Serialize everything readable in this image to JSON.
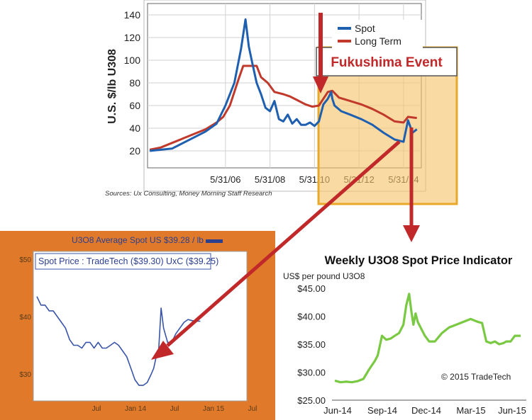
{
  "colors": {
    "spot": "#1f5fb0",
    "long_term": "#c0392b",
    "arrow": "#c0282a",
    "highlight_fill": "#f6c46a",
    "highlight_border": "#e8a92a",
    "panel_orange": "#e07a2a",
    "inset_line": "#3a55a8",
    "tradetech_line": "#7ac943",
    "fukushima_text": "#c0282a"
  },
  "annotations": {
    "fukushima": "Fukushima Event",
    "sources": "Sources: Ux Consulting, Money Morning Staff Research"
  },
  "chart_data": [
    {
      "id": "historical",
      "type": "line",
      "title": "",
      "xlabel": "",
      "ylabel": "U.S. $/lb U308",
      "x_tick_labels": [
        "5/31/06",
        "5/31/08",
        "5/31/10",
        "5/31/12",
        "5/31/14"
      ],
      "y_ticks": [
        20,
        40,
        60,
        80,
        100,
        120,
        140
      ],
      "xlim": [
        2002.9,
        2015.2
      ],
      "ylim": [
        5,
        150
      ],
      "legend_position": "top-right",
      "grid": true,
      "series": [
        {
          "name": "Spot",
          "color": "#1f5fb0",
          "x": [
            2003.0,
            2003.5,
            2004.0,
            2004.5,
            2005.0,
            2005.5,
            2006.0,
            2006.4,
            2006.8,
            2007.1,
            2007.3,
            2007.45,
            2007.6,
            2007.8,
            2008.0,
            2008.2,
            2008.4,
            2008.6,
            2008.8,
            2009.0,
            2009.2,
            2009.4,
            2009.6,
            2009.8,
            2010.0,
            2010.2,
            2010.4,
            2010.6,
            2010.8,
            2011.0,
            2011.15,
            2011.2,
            2011.3,
            2011.6,
            2012.0,
            2012.5,
            2013.0,
            2013.5,
            2014.0,
            2014.4,
            2014.6,
            2014.8,
            2015.0
          ],
          "values": [
            20,
            21,
            22,
            27,
            32,
            37,
            44,
            60,
            80,
            110,
            136,
            112,
            98,
            80,
            70,
            58,
            55,
            64,
            48,
            46,
            52,
            44,
            48,
            43,
            43,
            45,
            42,
            46,
            61,
            66,
            72,
            66,
            60,
            55,
            52,
            48,
            43,
            36,
            30,
            28,
            47,
            36,
            39
          ]
        },
        {
          "name": "Long Term",
          "color": "#c0392b",
          "x": [
            2003.0,
            2003.5,
            2004.0,
            2004.5,
            2005.0,
            2005.5,
            2006.0,
            2006.3,
            2006.6,
            2006.8,
            2007.0,
            2007.2,
            2007.4,
            2007.6,
            2007.8,
            2008.0,
            2008.3,
            2008.6,
            2009.0,
            2009.3,
            2009.6,
            2010.0,
            2010.3,
            2010.6,
            2010.8,
            2011.0,
            2011.2,
            2011.5,
            2012.0,
            2012.5,
            2013.0,
            2013.5,
            2014.0,
            2014.4,
            2014.6,
            2015.0
          ],
          "values": [
            21,
            23,
            27,
            31,
            35,
            39,
            45,
            50,
            60,
            72,
            84,
            95,
            95,
            95,
            95,
            85,
            80,
            72,
            70,
            68,
            65,
            61,
            59,
            60,
            66,
            72,
            73,
            67,
            64,
            61,
            57,
            52,
            46,
            45,
            50,
            49
          ]
        }
      ]
    },
    {
      "id": "inset",
      "type": "line",
      "title": "U3O8 Average Spot US $39.28 / lb",
      "subtitle": "Spot Price : TradeTech ($39.30) UxC ($39.25)",
      "xlabel": "",
      "ylabel": "",
      "x_tick_labels": [
        "Jul",
        "Jan 14",
        "Jul",
        "Jan 15",
        "Jul"
      ],
      "y_tick_labels": [
        "$30",
        "$40",
        "$50"
      ],
      "y_ticks": [
        30,
        40,
        50
      ],
      "xlim": [
        0,
        25
      ],
      "ylim": [
        25.3,
        51
      ],
      "grid": false,
      "series": [
        {
          "name": "Spot Price",
          "color": "#3a55a8",
          "x": [
            0,
            0.5,
            1,
            1.5,
            2,
            2.5,
            3,
            3.5,
            4,
            4.5,
            5,
            5.5,
            6,
            6.5,
            7,
            7.5,
            8,
            8.5,
            9,
            9.5,
            10,
            10.5,
            11,
            11.5,
            12,
            12.5,
            13,
            13.5,
            14,
            14.3,
            14.6,
            14.9,
            15.2,
            15.5,
            16,
            16.5,
            17,
            17.5,
            18,
            18.5,
            19,
            19.5,
            20
          ],
          "values": [
            43.5,
            42,
            42,
            41,
            41,
            40,
            39,
            38,
            36,
            35,
            35,
            34.5,
            35.5,
            35.5,
            34.5,
            35.5,
            34.5,
            34.5,
            35,
            35.5,
            35,
            34,
            33,
            31,
            29,
            28,
            28,
            28.5,
            30,
            31,
            33,
            34,
            41.5,
            38,
            35.5,
            35.5,
            37,
            38,
            39,
            39.5,
            39.3,
            39.2,
            39.2
          ]
        }
      ]
    },
    {
      "id": "tradetech",
      "type": "line",
      "title": "Weekly U3O8 Spot Price Indicator",
      "ylabel": "US$ per pound U3O8",
      "xlabel": "",
      "x_tick_labels": [
        "Jun-14",
        "Sep-14",
        "Dec-14",
        "Mar-15",
        "Jun-15"
      ],
      "y_tick_labels": [
        "$45.00",
        "$40.00",
        "$35.00",
        "$30.00",
        "$25.00"
      ],
      "y_ticks": [
        45,
        40,
        35,
        30,
        25
      ],
      "xlim": [
        0,
        13.2
      ],
      "ylim": [
        25,
        45
      ],
      "grid": false,
      "watermark": "© 2015 TradeTech",
      "series": [
        {
          "name": "TradeTech Weekly Spot",
          "color": "#7ac943",
          "x": [
            0,
            0.4,
            0.8,
            1.2,
            1.6,
            2.0,
            2.4,
            2.8,
            3.0,
            3.3,
            3.6,
            3.9,
            4.2,
            4.5,
            4.8,
            5.0,
            5.2,
            5.35,
            5.5,
            5.65,
            5.8,
            6.0,
            6.3,
            6.6,
            7.0,
            7.5,
            8.0,
            8.5,
            9.0,
            9.5,
            10.0,
            10.3,
            10.6,
            10.9,
            11.2,
            11.5,
            11.8,
            12.0,
            12.3,
            12.6,
            13.0
          ],
          "values": [
            28.5,
            28.2,
            28.3,
            28.2,
            28.4,
            28.8,
            30.5,
            32.0,
            33.0,
            36.5,
            35.8,
            36.0,
            36.5,
            37.0,
            38.5,
            42.0,
            44.0,
            41.0,
            38.5,
            40.5,
            39.0,
            38.0,
            36.5,
            35.5,
            35.5,
            37.0,
            38.0,
            38.5,
            39.0,
            39.5,
            39.0,
            38.8,
            35.5,
            35.2,
            35.5,
            35.0,
            35.2,
            35.5,
            35.5,
            36.5,
            36.5
          ]
        }
      ]
    }
  ]
}
